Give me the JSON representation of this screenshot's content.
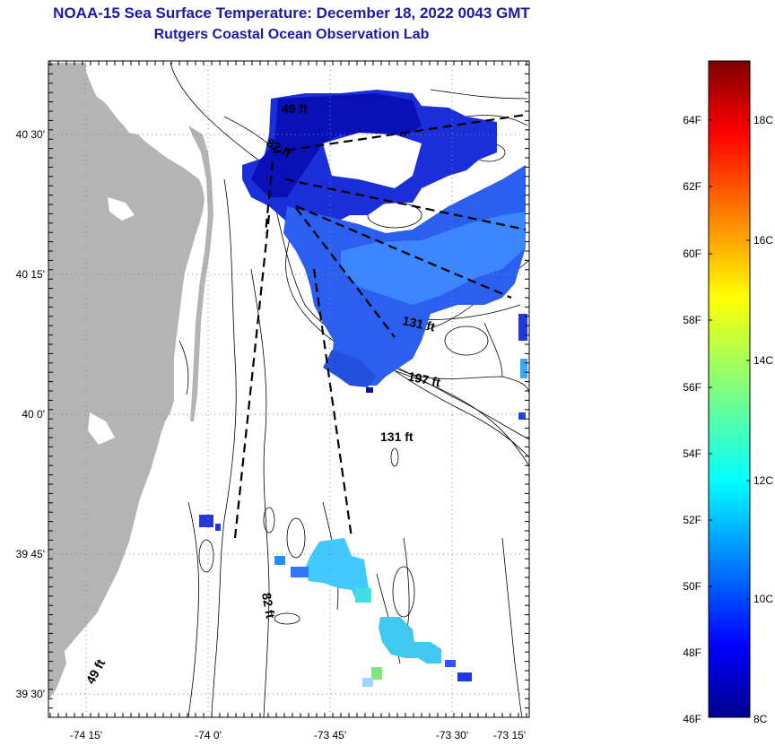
{
  "header": {
    "title": "NOAA-15 Sea Surface Temperature:  December 18, 2022 0043 GMT",
    "subtitle": "Rutgers Coastal Ocean Observation Lab"
  },
  "map": {
    "lat_labels": [
      "40 30'",
      "40 15'",
      "40 0'",
      "39 45'",
      "39 30'"
    ],
    "lon_labels": [
      "-74 15'",
      "-74 0'",
      "-73 45'",
      "-73 30'",
      "-73 15'"
    ],
    "depth_labels": [
      "49 ft",
      "82 ft",
      "131 ft",
      "197 ft",
      "131 ft",
      "82 ft",
      "49 ft"
    ]
  },
  "colorbar": {
    "fahrenheit_labels": [
      "64F",
      "62F",
      "60F",
      "58F",
      "56F",
      "54F",
      "52F",
      "50F",
      "48F",
      "46F"
    ],
    "celsius_labels": [
      "18C",
      "16C",
      "14C",
      "12C",
      "10C",
      "8C"
    ],
    "colors": {
      "low": "#00008f",
      "high": "#800000"
    }
  }
}
